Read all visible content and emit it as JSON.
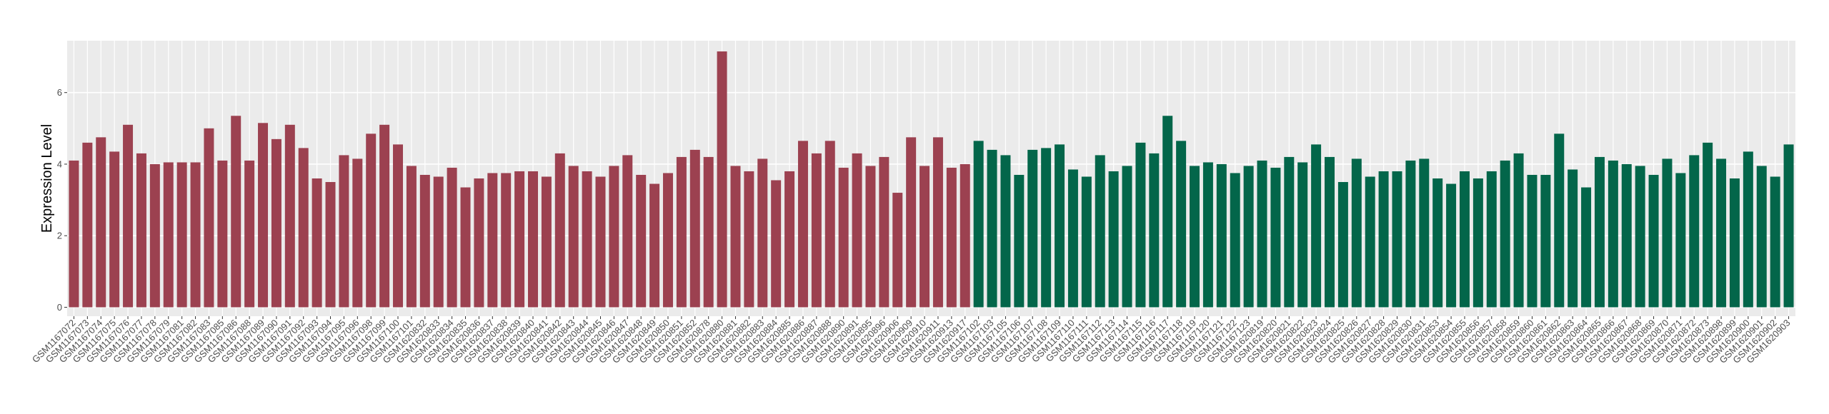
{
  "chart_data": {
    "type": "bar",
    "y_label": "Expression Level",
    "categories": [
      "GSM1167072",
      "GSM1167073",
      "GSM1167074",
      "GSM1167075",
      "GSM1167076",
      "GSM1167077",
      "GSM1167078",
      "GSM1167079",
      "GSM1167081",
      "GSM1167082",
      "GSM1167083",
      "GSM1167085",
      "GSM1167086",
      "GSM1167088",
      "GSM1167089",
      "GSM1167090",
      "GSM1167091",
      "GSM1167092",
      "GSM1167093",
      "GSM1167094",
      "GSM1167095",
      "GSM1167096",
      "GSM1167098",
      "GSM1167099",
      "GSM1167100",
      "GSM1167101",
      "GSM1620832",
      "GSM1620833",
      "GSM1620834",
      "GSM1620835",
      "GSM1620836",
      "GSM1620837",
      "GSM1620838",
      "GSM1620839",
      "GSM1620840",
      "GSM1620841",
      "GSM1620842",
      "GSM1620843",
      "GSM1620844",
      "GSM1620845",
      "GSM1620846",
      "GSM1620847",
      "GSM1620848",
      "GSM1620849",
      "GSM1620850",
      "GSM1620851",
      "GSM1620852",
      "GSM1620878",
      "GSM1620880",
      "GSM1620881",
      "GSM1620882",
      "GSM1620883",
      "GSM1620884",
      "GSM1620885",
      "GSM1620886",
      "GSM1620887",
      "GSM1620888",
      "GSM1620890",
      "GSM1620891",
      "GSM1620895",
      "GSM1620896",
      "GSM1620906",
      "GSM1620909",
      "GSM1620910",
      "GSM1620911",
      "GSM1620913",
      "GSM1620917",
      "GSM1167102",
      "GSM1167103",
      "GSM1167105",
      "GSM1167106",
      "GSM1167107",
      "GSM1167108",
      "GSM1167109",
      "GSM1167110",
      "GSM1167111",
      "GSM1167112",
      "GSM1167113",
      "GSM1167114",
      "GSM1167115",
      "GSM1167116",
      "GSM1167117",
      "GSM1167118",
      "GSM1167119",
      "GSM1167120",
      "GSM1167121",
      "GSM1167122",
      "GSM1167123",
      "GSM1620819",
      "GSM1620820",
      "GSM1620821",
      "GSM1620822",
      "GSM1620823",
      "GSM1620824",
      "GSM1620825",
      "GSM1620826",
      "GSM1620827",
      "GSM1620828",
      "GSM1620829",
      "GSM1620830",
      "GSM1620831",
      "GSM1620853",
      "GSM1620854",
      "GSM1620855",
      "GSM1620856",
      "GSM1620857",
      "GSM1620858",
      "GSM1620859",
      "GSM1620860",
      "GSM1620861",
      "GSM1620862",
      "GSM1620863",
      "GSM1620864",
      "GSM1620865",
      "GSM1620866",
      "GSM1620867",
      "GSM1620868",
      "GSM1620869",
      "GSM1620870",
      "GSM1620871",
      "GSM1620872",
      "GSM1620873",
      "GSM1620898",
      "GSM1620899",
      "GSM1620900",
      "GSM1620901",
      "GSM1620902",
      "GSM1620903"
    ],
    "values": [
      4.1,
      4.6,
      4.75,
      4.35,
      5.1,
      4.3,
      4.0,
      4.05,
      4.05,
      4.05,
      5.0,
      4.1,
      5.35,
      4.1,
      5.15,
      4.7,
      5.1,
      4.45,
      3.6,
      3.5,
      4.25,
      4.15,
      4.85,
      5.1,
      4.55,
      3.95,
      3.7,
      3.65,
      3.9,
      3.35,
      3.6,
      3.75,
      3.75,
      3.8,
      3.8,
      3.65,
      4.3,
      3.95,
      3.8,
      3.65,
      3.95,
      4.25,
      3.7,
      3.45,
      3.75,
      4.2,
      4.4,
      4.2,
      7.15,
      3.95,
      3.8,
      4.15,
      3.55,
      3.8,
      4.65,
      4.3,
      4.65,
      3.9,
      4.3,
      3.95,
      4.2,
      3.2,
      4.75,
      3.95,
      4.75,
      3.9,
      4.0,
      4.65,
      4.4,
      4.25,
      3.7,
      4.4,
      4.45,
      4.55,
      3.85,
      3.65,
      4.25,
      3.8,
      3.95,
      4.6,
      4.3,
      5.35,
      4.65,
      3.95,
      4.05,
      4.0,
      3.75,
      3.95,
      4.1,
      3.9,
      4.2,
      4.05,
      4.55,
      4.2,
      3.5,
      4.15,
      3.65,
      3.8,
      3.8,
      4.1,
      4.15,
      3.6,
      3.45,
      3.8,
      3.6,
      3.8,
      4.1,
      4.3,
      3.7,
      3.7,
      4.85,
      3.85,
      3.35,
      4.2,
      4.1,
      4.0,
      3.95,
      3.7,
      4.15,
      3.75,
      4.25,
      4.6,
      4.15,
      3.6,
      4.35,
      3.95,
      3.65,
      4.55
    ],
    "bar_colors": [
      "#9c4150",
      "#9c4150",
      "#9c4150",
      "#9c4150",
      "#9c4150",
      "#9c4150",
      "#9c4150",
      "#9c4150",
      "#9c4150",
      "#9c4150",
      "#9c4150",
      "#9c4150",
      "#9c4150",
      "#9c4150",
      "#9c4150",
      "#9c4150",
      "#9c4150",
      "#9c4150",
      "#9c4150",
      "#9c4150",
      "#9c4150",
      "#9c4150",
      "#9c4150",
      "#9c4150",
      "#9c4150",
      "#9c4150",
      "#9c4150",
      "#9c4150",
      "#9c4150",
      "#9c4150",
      "#9c4150",
      "#9c4150",
      "#9c4150",
      "#9c4150",
      "#9c4150",
      "#9c4150",
      "#9c4150",
      "#9c4150",
      "#9c4150",
      "#9c4150",
      "#9c4150",
      "#9c4150",
      "#9c4150",
      "#9c4150",
      "#9c4150",
      "#9c4150",
      "#9c4150",
      "#9c4150",
      "#9c4150",
      "#9c4150",
      "#9c4150",
      "#9c4150",
      "#9c4150",
      "#9c4150",
      "#9c4150",
      "#9c4150",
      "#9c4150",
      "#9c4150",
      "#9c4150",
      "#9c4150",
      "#9c4150",
      "#9c4150",
      "#9c4150",
      "#9c4150",
      "#9c4150",
      "#9c4150",
      "#9c4150",
      "#03664a",
      "#03664a",
      "#03664a",
      "#03664a",
      "#03664a",
      "#03664a",
      "#03664a",
      "#03664a",
      "#03664a",
      "#03664a",
      "#03664a",
      "#03664a",
      "#03664a",
      "#03664a",
      "#03664a",
      "#03664a",
      "#03664a",
      "#03664a",
      "#03664a",
      "#03664a",
      "#03664a",
      "#03664a",
      "#03664a",
      "#03664a",
      "#03664a",
      "#03664a",
      "#03664a",
      "#03664a",
      "#03664a",
      "#03664a",
      "#03664a",
      "#03664a",
      "#03664a",
      "#03664a",
      "#03664a",
      "#03664a",
      "#03664a",
      "#03664a",
      "#03664a",
      "#03664a",
      "#03664a",
      "#03664a",
      "#03664a",
      "#03664a",
      "#03664a",
      "#03664a",
      "#03664a",
      "#03664a",
      "#03664a",
      "#03664a",
      "#03664a",
      "#03664a",
      "#03664a",
      "#03664a",
      "#03664a",
      "#03664a",
      "#03664a",
      "#03664a",
      "#03664a",
      "#03664a",
      "#03664a"
    ],
    "ylim": [
      -0.25,
      7.45
    ],
    "yticks": [
      0,
      2,
      4,
      6
    ],
    "grid": true
  }
}
